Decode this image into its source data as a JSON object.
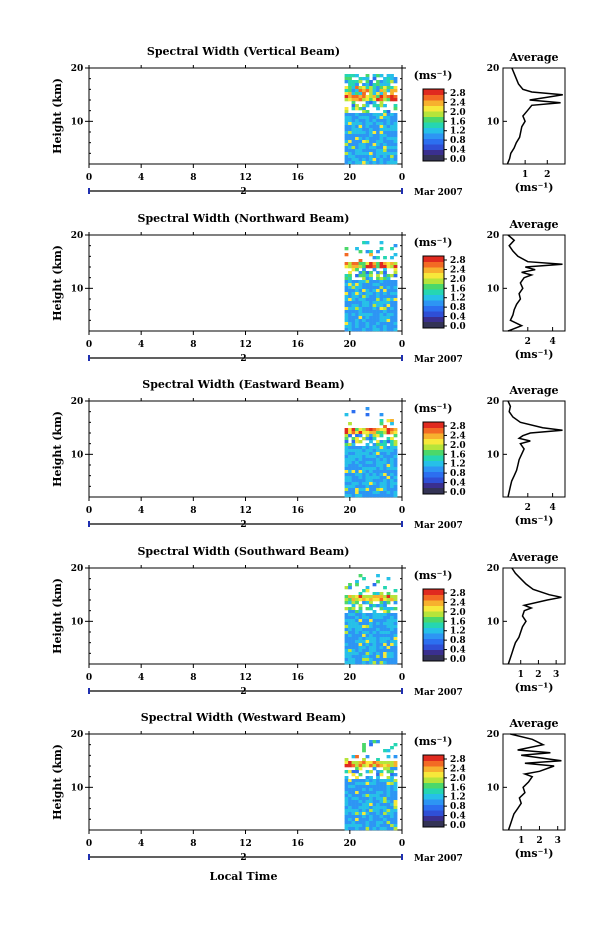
{
  "bottom_label": "Local Time",
  "colors": {
    "scale": [
      "#3a2f8f",
      "#2f4fd6",
      "#2c6ff0",
      "#2d95f4",
      "#26c0e8",
      "#25d6b2",
      "#4bd86a",
      "#b6e43a",
      "#f7e83a",
      "#f7b12e",
      "#f36a24",
      "#e02a1f"
    ],
    "trace": "#000000",
    "axis_blue": "#1f2fb0"
  },
  "chart_data": [
    {
      "type": "heatmap",
      "title": "Spectral Width (Vertical Beam)",
      "ylabel": "Height (km)",
      "yticks": [
        10,
        20
      ],
      "ylim": [
        2,
        20
      ],
      "xticks": [
        "0",
        "4",
        "8",
        "12",
        "16",
        "20",
        "0"
      ],
      "xlim": [
        0,
        24
      ],
      "date_mark": "2",
      "date_label": "Mar 2007",
      "data_start_hour": 19.6,
      "colorbar_unit": "(ms⁻¹)",
      "colorbar_ticks": [
        "2.8",
        "2.4",
        "2.0",
        "1.6",
        "1.2",
        "0.8",
        "0.4",
        "0.0"
      ],
      "average_title": "Average",
      "average_xlabel": "(ms⁻¹)",
      "average_xticks": [
        "1",
        "2"
      ],
      "average_xlim": [
        0,
        2.8
      ],
      "average_yticks": [
        10,
        20
      ],
      "average_profile": {
        "height": [
          2,
          3,
          4,
          5,
          6,
          7,
          8,
          9,
          10,
          11,
          12,
          13,
          13.5,
          14,
          14.5,
          15,
          15.5,
          16,
          17,
          18,
          19,
          20
        ],
        "width": [
          0.2,
          0.3,
          0.35,
          0.5,
          0.6,
          0.75,
          0.8,
          0.85,
          1.0,
          0.9,
          1.1,
          1.3,
          2.6,
          1.2,
          2.0,
          2.7,
          1.3,
          0.9,
          0.7,
          0.6,
          0.5,
          0.4
        ]
      }
    },
    {
      "type": "heatmap",
      "title": "Spectral Width (Northward Beam)",
      "ylabel": "Height (km)",
      "yticks": [
        10,
        20
      ],
      "ylim": [
        2,
        20
      ],
      "xticks": [
        "0",
        "4",
        "8",
        "12",
        "16",
        "20",
        "0"
      ],
      "xlim": [
        0,
        24
      ],
      "date_mark": "2",
      "date_label": "Mar 2007",
      "data_start_hour": 19.6,
      "colorbar_unit": "(ms⁻¹)",
      "colorbar_ticks": [
        "2.8",
        "2.4",
        "2.0",
        "1.6",
        "1.2",
        "0.8",
        "0.4",
        "0.0"
      ],
      "average_title": "Average",
      "average_xlabel": "(ms⁻¹)",
      "average_xticks": [
        "2",
        "4"
      ],
      "average_xlim": [
        0,
        5
      ],
      "average_yticks": [
        10,
        20
      ],
      "average_profile": {
        "height": [
          2,
          3,
          4,
          5,
          6,
          7,
          8,
          9,
          10,
          11,
          12,
          12.5,
          13,
          13.5,
          14,
          14.5,
          15,
          16,
          17,
          18,
          19,
          20
        ],
        "width": [
          0.4,
          1.5,
          0.6,
          0.8,
          0.9,
          1.1,
          1.4,
          1.3,
          1.6,
          1.4,
          1.7,
          2.3,
          1.5,
          2.6,
          1.8,
          4.8,
          2.0,
          1.2,
          0.8,
          0.5,
          0.9,
          0.4
        ]
      }
    },
    {
      "type": "heatmap",
      "title": "Spectral Width (Eastward Beam)",
      "ylabel": "Height (km)",
      "yticks": [
        10,
        20
      ],
      "ylim": [
        2,
        20
      ],
      "xticks": [
        "0",
        "4",
        "8",
        "12",
        "16",
        "20",
        "0"
      ],
      "xlim": [
        0,
        24
      ],
      "date_mark": "2",
      "date_label": "Mar 2007",
      "data_start_hour": 19.6,
      "colorbar_unit": "(ms⁻¹)",
      "colorbar_ticks": [
        "2.8",
        "2.4",
        "2.0",
        "1.6",
        "1.2",
        "0.8",
        "0.4",
        "0.0"
      ],
      "average_title": "Average",
      "average_xlabel": "(ms⁻¹)",
      "average_xticks": [
        "2",
        "4"
      ],
      "average_xlim": [
        0,
        5
      ],
      "average_yticks": [
        10,
        20
      ],
      "average_profile": {
        "height": [
          2,
          3,
          4,
          5,
          6,
          7,
          8,
          9,
          10,
          11,
          12,
          12.5,
          13,
          13.5,
          14,
          14.5,
          15,
          16,
          17,
          18,
          19,
          20
        ],
        "width": [
          0.4,
          0.5,
          0.6,
          0.7,
          0.9,
          1.1,
          1.2,
          1.3,
          1.5,
          1.7,
          1.4,
          2.2,
          1.3,
          1.6,
          2.2,
          4.8,
          3.2,
          1.4,
          0.8,
          0.5,
          0.6,
          0.4
        ]
      }
    },
    {
      "type": "heatmap",
      "title": "Spectral Width (Southward Beam)",
      "ylabel": "Height (km)",
      "yticks": [
        10,
        20
      ],
      "ylim": [
        2,
        20
      ],
      "xticks": [
        "0",
        "4",
        "8",
        "12",
        "16",
        "20",
        "0"
      ],
      "xlim": [
        0,
        24
      ],
      "date_mark": "2",
      "date_label": "Mar 2007",
      "data_start_hour": 19.6,
      "colorbar_unit": "(ms⁻¹)",
      "colorbar_ticks": [
        "2.8",
        "2.4",
        "2.0",
        "1.6",
        "1.2",
        "0.8",
        "0.4",
        "0.0"
      ],
      "average_title": "Average",
      "average_xlabel": "(ms⁻¹)",
      "average_xticks": [
        "1",
        "2",
        "3"
      ],
      "average_xlim": [
        0,
        3.5
      ],
      "average_yticks": [
        10,
        20
      ],
      "average_profile": {
        "height": [
          2,
          3,
          4,
          5,
          6,
          7,
          8,
          9,
          10,
          11,
          12,
          12.5,
          13,
          14,
          14.5,
          15,
          16,
          17,
          18,
          19,
          20
        ],
        "width": [
          0.3,
          0.4,
          0.5,
          0.6,
          0.7,
          0.9,
          1.0,
          1.1,
          1.3,
          1.1,
          1.2,
          1.6,
          1.2,
          2.5,
          3.3,
          2.6,
          1.7,
          1.3,
          1.0,
          0.7,
          0.5
        ]
      }
    },
    {
      "type": "heatmap",
      "title": "Spectral Width (Westward Beam)",
      "ylabel": "Height (km)",
      "yticks": [
        10,
        20
      ],
      "ylim": [
        2,
        20
      ],
      "xticks": [
        "0",
        "4",
        "8",
        "12",
        "16",
        "20",
        "0"
      ],
      "xlim": [
        0,
        24
      ],
      "date_mark": "2",
      "date_label": "Mar 2007",
      "data_start_hour": 19.6,
      "colorbar_unit": "(ms⁻¹)",
      "colorbar_ticks": [
        "2.8",
        "2.4",
        "2.0",
        "1.6",
        "1.2",
        "0.8",
        "0.4",
        "0.0"
      ],
      "average_title": "Average",
      "average_xlabel": "(ms⁻¹)",
      "average_xticks": [
        "1",
        "2",
        "3"
      ],
      "average_xlim": [
        0,
        3.4
      ],
      "average_yticks": [
        10,
        20
      ],
      "average_profile": {
        "height": [
          2,
          3,
          4,
          5,
          6,
          7,
          8,
          9,
          10,
          11,
          12,
          12.5,
          13,
          14,
          14.5,
          15,
          16,
          16.5,
          17,
          18,
          19,
          20
        ],
        "width": [
          0.3,
          0.4,
          0.5,
          0.6,
          0.8,
          1.0,
          0.9,
          1.2,
          1.1,
          1.4,
          1.6,
          1.2,
          2.0,
          2.8,
          1.2,
          3.2,
          1.0,
          2.6,
          0.8,
          2.2,
          1.6,
          0.4
        ]
      }
    }
  ]
}
